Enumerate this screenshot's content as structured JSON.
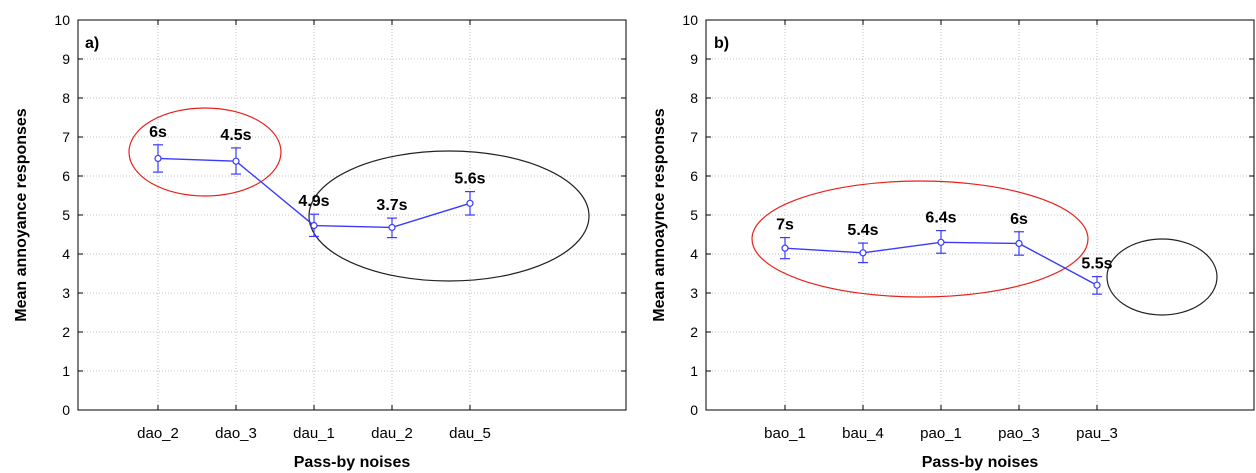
{
  "chart_data": [
    {
      "type": "line",
      "panel_label": "a)",
      "xlabel": "Pass-by noises",
      "ylabel": "Mean annoyance responses",
      "ylim": [
        0,
        10
      ],
      "yticks": [
        "0",
        "1",
        "2",
        "3",
        "4",
        "5",
        "6",
        "7",
        "8",
        "9",
        "10"
      ],
      "grid": true,
      "categories": [
        "dao_2",
        "dao_3",
        "dau_1",
        "dau_2",
        "dau_5"
      ],
      "values": [
        6.45,
        6.38,
        4.73,
        4.68,
        5.3
      ],
      "error_low": [
        6.1,
        6.05,
        4.45,
        4.42,
        5.0
      ],
      "error_high": [
        6.8,
        6.72,
        5.02,
        4.92,
        5.6
      ],
      "point_labels": [
        "6s",
        "4.5s",
        "4.9s",
        "3.7s",
        "5.6s"
      ],
      "line_color": "#3a3aff",
      "groups": [
        {
          "members": [
            "dao_2",
            "dao_3"
          ],
          "color": "#e8201a"
        },
        {
          "members": [
            "dau_1",
            "dau_2",
            "dau_5"
          ],
          "color": "#222222"
        }
      ]
    },
    {
      "type": "line",
      "panel_label": "b)",
      "xlabel": "Pass-by noises",
      "ylabel": "Mean annoaynce responses",
      "ylim": [
        0,
        10
      ],
      "yticks": [
        "0",
        "1",
        "2",
        "3",
        "4",
        "5",
        "6",
        "7",
        "8",
        "9",
        "10"
      ],
      "grid": true,
      "categories": [
        "bao_1",
        "bau_4",
        "pao_1",
        "pao_3",
        "pau_3"
      ],
      "values": [
        4.15,
        4.03,
        4.3,
        4.27,
        3.2
      ],
      "error_low": [
        3.88,
        3.78,
        4.02,
        3.97,
        2.97
      ],
      "error_high": [
        4.42,
        4.28,
        4.6,
        4.57,
        3.42
      ],
      "point_labels": [
        "7s",
        "5.4s",
        "6.4s",
        "6s",
        "5.5s"
      ],
      "line_color": "#3a3aff",
      "groups": [
        {
          "members": [
            "bao_1",
            "bau_4",
            "pao_1",
            "pao_3"
          ],
          "color": "#e8201a"
        },
        {
          "members": [
            "pau_3"
          ],
          "color": "#222222"
        }
      ]
    }
  ]
}
